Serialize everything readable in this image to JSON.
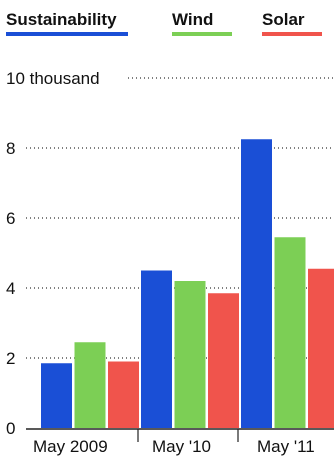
{
  "chart_data": {
    "type": "bar",
    "categories": [
      "May 2009",
      "May '10",
      "May '11"
    ],
    "series": [
      {
        "name": "Sustainability",
        "color": "#1a4fd6",
        "values": [
          1.85,
          4.5,
          8.25
        ]
      },
      {
        "name": "Wind",
        "color": "#7ccf55",
        "values": [
          2.45,
          4.2,
          5.45
        ]
      },
      {
        "name": "Solar",
        "color": "#f0544c",
        "values": [
          1.9,
          3.85,
          4.55
        ]
      }
    ],
    "yticks": [
      {
        "value": 0,
        "label": "0"
      },
      {
        "value": 2,
        "label": "2"
      },
      {
        "value": 4,
        "label": "4"
      },
      {
        "value": 6,
        "label": "6"
      },
      {
        "value": 8,
        "label": "8"
      },
      {
        "value": 10,
        "label": "10 thousand"
      }
    ],
    "ylim": [
      0,
      10
    ],
    "grid": true,
    "legend_position": "top"
  }
}
